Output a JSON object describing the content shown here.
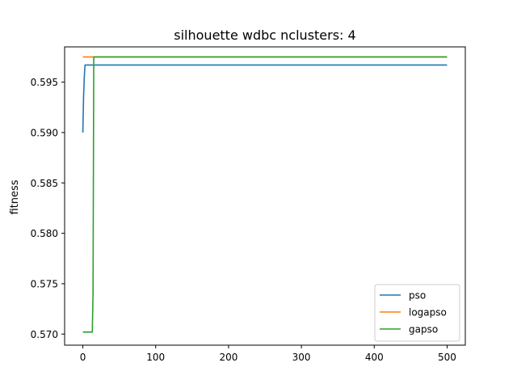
{
  "chart_data": {
    "type": "line",
    "title": "silhouette wdbc nclusters: 4",
    "xlabel": "",
    "ylabel": "fitness",
    "xlim": [
      -25,
      525
    ],
    "ylim": [
      0.5689,
      0.5985
    ],
    "xticks": [
      0,
      100,
      200,
      300,
      400,
      500
    ],
    "yticks": [
      0.57,
      0.575,
      0.58,
      0.585,
      0.59,
      0.595
    ],
    "ytick_labels": [
      "0.570",
      "0.575",
      "0.580",
      "0.585",
      "0.590",
      "0.595"
    ],
    "grid": false,
    "legend_position": "bottom-right",
    "series": [
      {
        "name": "pso",
        "color": "#1f77b4",
        "points": [
          [
            0,
            0.59
          ],
          [
            1,
            0.5935
          ],
          [
            2,
            0.5955
          ],
          [
            3,
            0.5967
          ],
          [
            4,
            0.5967
          ],
          [
            500,
            0.5967
          ]
        ]
      },
      {
        "name": "logapso",
        "color": "#ff7f0e",
        "points": [
          [
            0,
            0.5975
          ],
          [
            500,
            0.5975
          ]
        ]
      },
      {
        "name": "gapso",
        "color": "#2ca02c",
        "points": [
          [
            0,
            0.5702
          ],
          [
            13,
            0.5702
          ],
          [
            14,
            0.574
          ],
          [
            15,
            0.5975
          ],
          [
            500,
            0.5975
          ]
        ]
      }
    ]
  }
}
